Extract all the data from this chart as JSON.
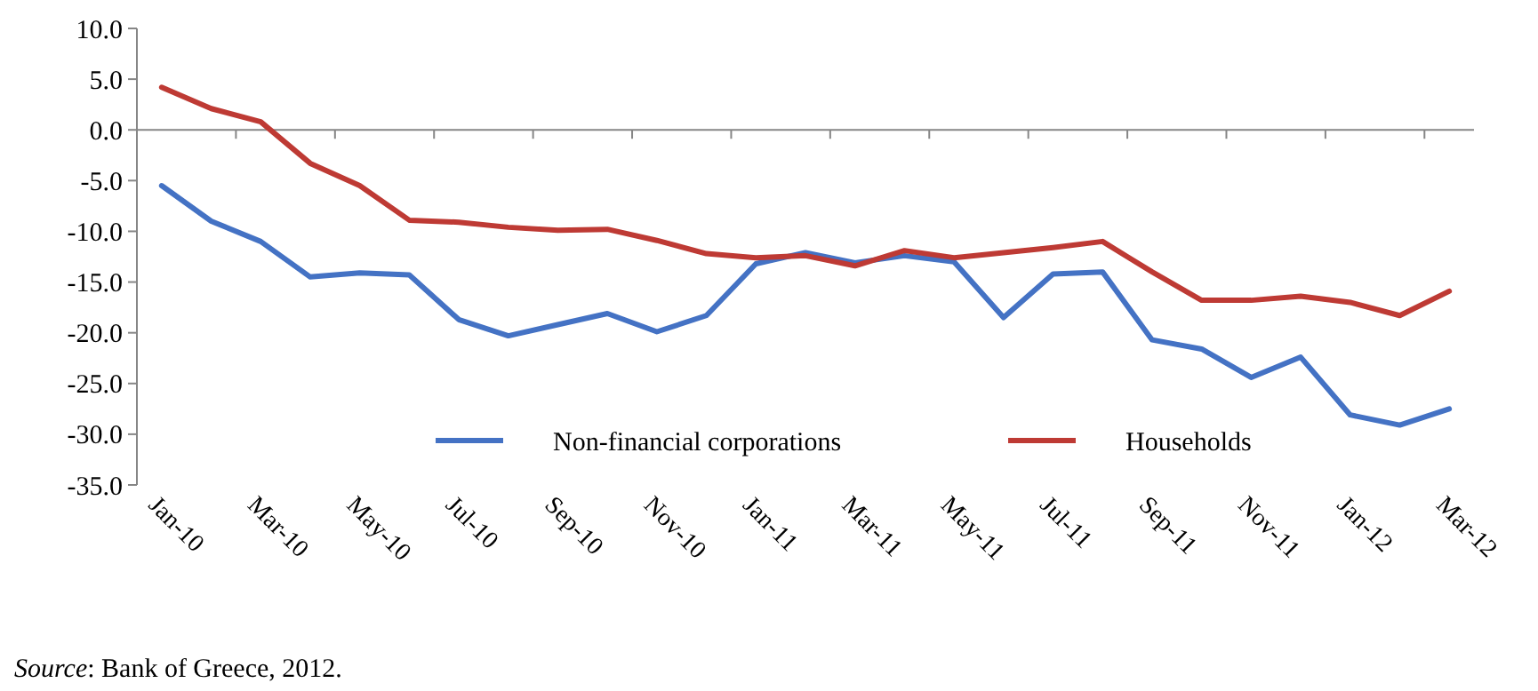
{
  "chart_data": {
    "type": "line",
    "categories": [
      "Jan-10",
      null,
      "Mar-10",
      null,
      "May-10",
      null,
      "Jul-10",
      null,
      "Sep-10",
      null,
      "Nov-10",
      null,
      "Jan-11",
      null,
      "Mar-11",
      null,
      "May-11",
      null,
      "Jul-11",
      null,
      "Sep-11",
      null,
      "Nov-11",
      null,
      "Jan-12",
      null,
      "Mar-12"
    ],
    "series": [
      {
        "name": "Non-financial corporations",
        "color": "#4472c4",
        "values": [
          -5.5,
          -9.0,
          -11.0,
          -14.5,
          -14.1,
          -14.3,
          -18.7,
          -20.3,
          -19.2,
          -18.1,
          -19.9,
          -18.3,
          -13.2,
          -12.1,
          -13.1,
          -12.4,
          -13.0,
          -18.5,
          -14.2,
          -14.0,
          -20.7,
          -21.6,
          -24.4,
          -22.4,
          -28.1,
          -29.1,
          -27.5
        ]
      },
      {
        "name": "Households",
        "color": "#be3a34",
        "values": [
          4.2,
          2.1,
          0.8,
          -3.3,
          -5.5,
          -8.9,
          -9.1,
          -9.6,
          -9.9,
          -9.8,
          -10.9,
          -12.2,
          -12.6,
          -12.4,
          -13.4,
          -11.9,
          -12.6,
          -12.1,
          -11.6,
          -11.0,
          -14.0,
          -16.8,
          -16.8,
          -16.4,
          -17.0,
          -18.3,
          -15.9
        ]
      }
    ],
    "ylim": [
      -35,
      10
    ],
    "yticks": [
      {
        "value": 10,
        "label": "10.0"
      },
      {
        "value": 5,
        "label": "5.0"
      },
      {
        "value": 0,
        "label": "0.0"
      },
      {
        "value": -5,
        "label": "-5.0"
      },
      {
        "value": -10,
        "label": "-10.0"
      },
      {
        "value": -15,
        "label": "-15.0"
      },
      {
        "value": -20,
        "label": "-20.0"
      },
      {
        "value": -25,
        "label": "-25.0"
      },
      {
        "value": -30,
        "label": "-30.0"
      },
      {
        "value": -35,
        "label": "-35.0"
      }
    ],
    "legend": "bottom",
    "marker": "none",
    "line_style": "solid",
    "annotations": [
      "Source: Bank of Greece, 2012."
    ]
  }
}
